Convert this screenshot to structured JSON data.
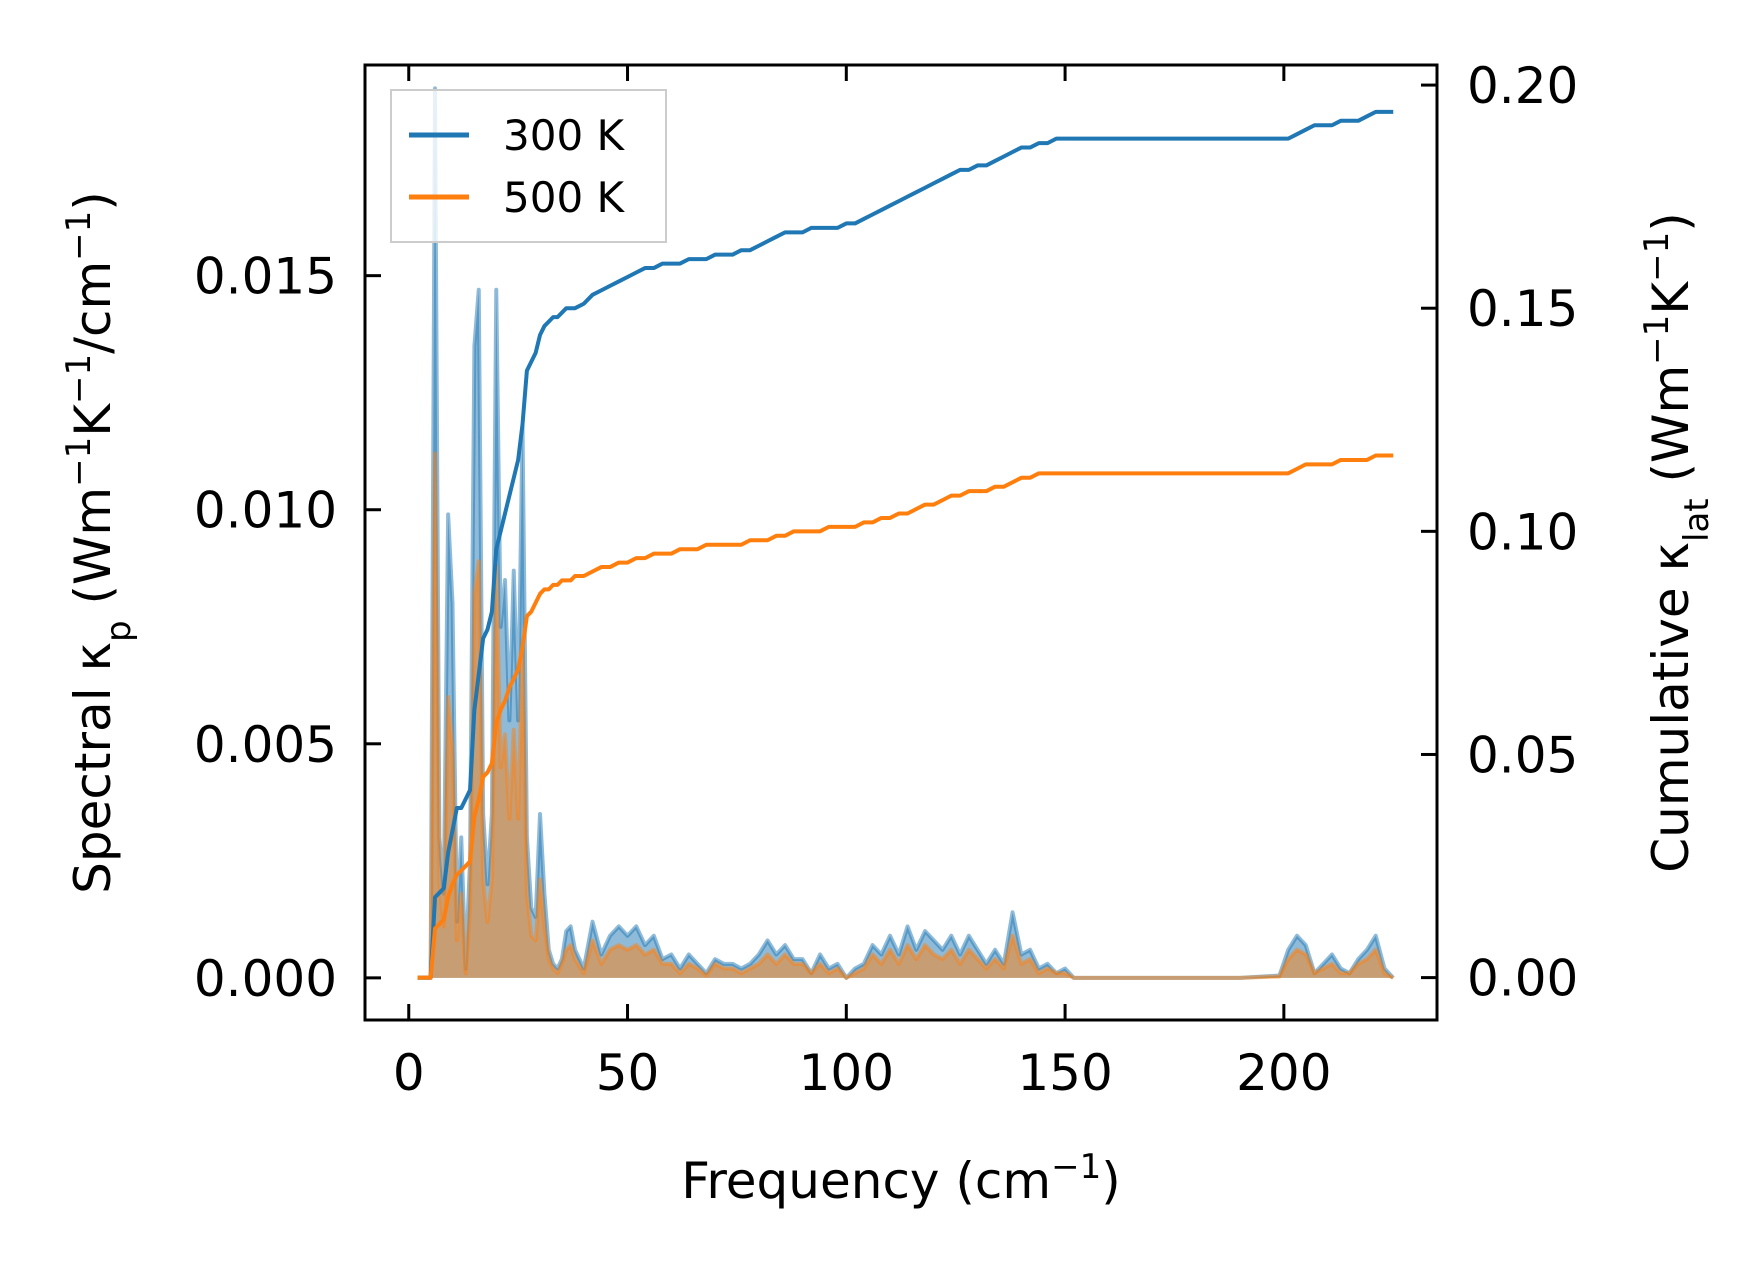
{
  "chart_data": {
    "type": "line",
    "title": "",
    "xlabel": {
      "base": "Frequency (cm",
      "sup": "−1",
      "tail": ")"
    },
    "ylabel_left": {
      "parts": [
        {
          "t": "Spectral κ",
          "kind": "normal"
        },
        {
          "t": "p",
          "kind": "sub"
        },
        {
          "t": " (Wm",
          "kind": "normal"
        },
        {
          "t": "−1",
          "kind": "sup"
        },
        {
          "t": "K",
          "kind": "normal"
        },
        {
          "t": "−1",
          "kind": "sup"
        },
        {
          "t": "/cm",
          "kind": "normal"
        },
        {
          "t": "−1",
          "kind": "sup"
        },
        {
          "t": ")",
          "kind": "normal"
        }
      ]
    },
    "ylabel_right": {
      "parts": [
        {
          "t": "Cumulative κ",
          "kind": "normal"
        },
        {
          "t": "lat",
          "kind": "sub"
        },
        {
          "t": " (Wm",
          "kind": "normal"
        },
        {
          "t": "−1",
          "kind": "sup"
        },
        {
          "t": "K",
          "kind": "normal"
        },
        {
          "t": "−1",
          "kind": "sup"
        },
        {
          "t": ")",
          "kind": "normal"
        }
      ]
    },
    "xlim": [
      -10,
      235
    ],
    "ylim_left": [
      -0.0009,
      0.0195
    ],
    "ylim_right": [
      -0.0095,
      0.2045
    ],
    "xticks": [
      0,
      50,
      100,
      150,
      200
    ],
    "xtick_labels": [
      "0",
      "50",
      "100",
      "150",
      "200"
    ],
    "yticks_left": [
      0.0,
      0.005,
      0.01,
      0.015
    ],
    "ytick_labels_left": [
      "0.000",
      "0.005",
      "0.010",
      "0.015"
    ],
    "yticks_right": [
      0.0,
      0.05,
      0.1,
      0.15,
      0.2
    ],
    "ytick_labels_right": [
      "0.00",
      "0.05",
      "0.10",
      "0.15",
      "0.20"
    ],
    "legend_position": "top-left",
    "series": [
      {
        "name": "300 K",
        "color": "#1f77b4",
        "spectral_x": [
          2,
          5,
          6,
          7,
          8,
          9,
          10,
          11,
          12,
          13,
          14,
          15,
          16,
          17,
          18,
          19,
          20,
          21,
          22,
          23,
          24,
          25,
          26,
          27,
          28,
          29,
          30,
          31,
          32,
          33,
          34,
          35,
          36,
          37,
          38,
          40,
          42,
          44,
          46,
          48,
          50,
          52,
          54,
          56,
          58,
          60,
          62,
          64,
          66,
          68,
          70,
          72,
          74,
          76,
          78,
          80,
          82,
          84,
          86,
          88,
          90,
          92,
          94,
          96,
          98,
          100,
          102,
          104,
          106,
          108,
          110,
          112,
          114,
          116,
          118,
          120,
          122,
          124,
          126,
          128,
          130,
          132,
          134,
          136,
          138,
          140,
          142,
          144,
          146,
          148,
          150,
          152,
          155,
          160,
          170,
          180,
          190,
          199,
          201,
          203,
          205,
          207,
          209,
          211,
          213,
          215,
          217,
          219,
          221,
          223,
          225
        ],
        "spectral_y": [
          0,
          0,
          0.019,
          0.003,
          0.0018,
          0.0099,
          0.008,
          0.0012,
          0.003,
          0.0002,
          0.0025,
          0.0135,
          0.0147,
          0.0035,
          0.002,
          0.0035,
          0.0147,
          0.0075,
          0.0085,
          0.0055,
          0.0087,
          0.0055,
          0.0118,
          0.003,
          0.0015,
          0.0013,
          0.0035,
          0.0018,
          0.0006,
          0.0003,
          0.0002,
          0.0004,
          0.001,
          0.0011,
          0.0006,
          0.0002,
          0.0012,
          0.0005,
          0.0009,
          0.0011,
          0.0009,
          0.0011,
          0.0007,
          0.0009,
          0.0004,
          0.0005,
          0.0002,
          0.0005,
          0.0003,
          0.0001,
          0.0004,
          0.0003,
          0.0003,
          0.0002,
          0.0003,
          0.0005,
          0.0008,
          0.0005,
          0.0007,
          0.0004,
          0.0004,
          0.0001,
          0.0005,
          0.0002,
          0.0003,
          0.0,
          0.0002,
          0.0003,
          0.0007,
          0.0005,
          0.0009,
          0.0005,
          0.0011,
          0.0006,
          0.001,
          0.0008,
          0.0006,
          0.0009,
          0.0005,
          0.0009,
          0.0006,
          0.0003,
          0.0006,
          0.0003,
          0.0014,
          0.0005,
          0.0006,
          0.0002,
          0.0003,
          0.0001,
          0.0002,
          0.0,
          0,
          0,
          0,
          0,
          0,
          5e-05,
          0.0006,
          0.0009,
          0.0007,
          0.0001,
          0.0003,
          0.0005,
          0.0002,
          0.0001,
          0.0004,
          0.0006,
          0.0009,
          0.0002,
          0
        ],
        "cumulative_x": [
          2,
          5,
          6,
          7,
          8,
          9,
          10,
          11,
          12,
          13,
          14,
          15,
          16,
          17,
          18,
          19,
          20,
          21,
          22,
          23,
          24,
          25,
          26,
          27,
          28,
          29,
          30,
          31,
          32,
          33,
          34,
          35,
          36,
          37,
          38,
          40,
          42,
          44,
          46,
          48,
          50,
          52,
          54,
          56,
          58,
          60,
          62,
          64,
          66,
          68,
          70,
          72,
          74,
          76,
          78,
          80,
          82,
          84,
          86,
          88,
          90,
          92,
          94,
          96,
          98,
          100,
          102,
          104,
          106,
          108,
          110,
          112,
          114,
          116,
          118,
          120,
          122,
          124,
          126,
          128,
          130,
          132,
          134,
          136,
          138,
          140,
          142,
          144,
          146,
          148,
          150,
          152,
          155,
          160,
          170,
          180,
          190,
          199,
          201,
          203,
          205,
          207,
          209,
          211,
          213,
          215,
          217,
          219,
          221,
          223,
          225
        ],
        "cumulative_y": [
          0,
          0,
          0.018,
          0.019,
          0.02,
          0.028,
          0.033,
          0.038,
          0.038,
          0.04,
          0.042,
          0.06,
          0.068,
          0.076,
          0.078,
          0.082,
          0.096,
          0.1,
          0.104,
          0.108,
          0.112,
          0.116,
          0.124,
          0.136,
          0.138,
          0.14,
          0.144,
          0.146,
          0.147,
          0.148,
          0.148,
          0.149,
          0.15,
          0.15,
          0.15,
          0.151,
          0.153,
          0.154,
          0.155,
          0.156,
          0.157,
          0.158,
          0.159,
          0.159,
          0.16,
          0.16,
          0.16,
          0.161,
          0.161,
          0.161,
          0.162,
          0.162,
          0.162,
          0.163,
          0.163,
          0.164,
          0.165,
          0.166,
          0.167,
          0.167,
          0.167,
          0.168,
          0.168,
          0.168,
          0.168,
          0.169,
          0.169,
          0.17,
          0.171,
          0.172,
          0.173,
          0.174,
          0.175,
          0.176,
          0.177,
          0.178,
          0.179,
          0.18,
          0.181,
          0.181,
          0.182,
          0.182,
          0.183,
          0.184,
          0.185,
          0.186,
          0.186,
          0.187,
          0.187,
          0.188,
          0.188,
          0.188,
          0.188,
          0.188,
          0.188,
          0.188,
          0.188,
          0.188,
          0.188,
          0.189,
          0.19,
          0.191,
          0.191,
          0.191,
          0.192,
          0.192,
          0.192,
          0.193,
          0.194,
          0.194,
          0.194
        ]
      },
      {
        "name": "500 K",
        "color": "#ff7f0e",
        "spectral_x": [
          2,
          5,
          6,
          7,
          8,
          9,
          10,
          11,
          12,
          13,
          14,
          15,
          16,
          17,
          18,
          19,
          20,
          21,
          22,
          23,
          24,
          25,
          26,
          27,
          28,
          29,
          30,
          31,
          32,
          33,
          34,
          35,
          36,
          37,
          38,
          40,
          42,
          44,
          46,
          48,
          50,
          52,
          54,
          56,
          58,
          60,
          62,
          64,
          66,
          68,
          70,
          72,
          74,
          76,
          78,
          80,
          82,
          84,
          86,
          88,
          90,
          92,
          94,
          96,
          98,
          100,
          102,
          104,
          106,
          108,
          110,
          112,
          114,
          116,
          118,
          120,
          122,
          124,
          126,
          128,
          130,
          132,
          134,
          136,
          138,
          140,
          142,
          144,
          146,
          148,
          150,
          152,
          155,
          160,
          170,
          180,
          190,
          199,
          201,
          203,
          205,
          207,
          209,
          211,
          213,
          215,
          217,
          219,
          221,
          223,
          225
        ],
        "spectral_y": [
          0,
          0,
          0.0112,
          0.002,
          0.0011,
          0.006,
          0.0049,
          0.0008,
          0.0018,
          0.0001,
          0.0015,
          0.0082,
          0.0089,
          0.0021,
          0.0012,
          0.0021,
          0.0088,
          0.0045,
          0.0052,
          0.0034,
          0.0053,
          0.0034,
          0.0071,
          0.0018,
          0.0009,
          0.0008,
          0.0021,
          0.0011,
          0.0004,
          0.0002,
          0.0001,
          0.0003,
          0.0006,
          0.0007,
          0.0004,
          0.0001,
          0.0008,
          0.0003,
          0.0006,
          0.0007,
          0.0006,
          0.0007,
          0.0005,
          0.0006,
          0.0003,
          0.0003,
          0.0001,
          0.0003,
          0.0002,
          5e-05,
          0.0003,
          0.0002,
          0.0002,
          0.0001,
          0.0002,
          0.0003,
          0.0005,
          0.0003,
          0.0005,
          0.0003,
          0.0003,
          0.0001,
          0.0003,
          0.0001,
          0.0002,
          0.0,
          0.0001,
          0.0002,
          0.0005,
          0.0003,
          0.0006,
          0.0003,
          0.0007,
          0.0004,
          0.0007,
          0.0005,
          0.0004,
          0.0006,
          0.0003,
          0.0006,
          0.0004,
          0.0002,
          0.0004,
          0.0002,
          0.0009,
          0.0003,
          0.0004,
          0.0001,
          0.0002,
          0.0001,
          0.0001,
          0.0,
          0,
          0,
          0,
          0,
          0,
          3e-05,
          0.0004,
          0.0006,
          0.0005,
          0.0001,
          0.0002,
          0.0003,
          0.0001,
          0.0001,
          0.0003,
          0.0004,
          0.0006,
          0.0001,
          0
        ],
        "cumulative_x": [
          2,
          5,
          6,
          7,
          8,
          9,
          10,
          11,
          12,
          13,
          14,
          15,
          16,
          17,
          18,
          19,
          20,
          21,
          22,
          23,
          24,
          25,
          26,
          27,
          28,
          29,
          30,
          31,
          32,
          33,
          34,
          35,
          36,
          37,
          38,
          40,
          42,
          44,
          46,
          48,
          50,
          52,
          54,
          56,
          58,
          60,
          62,
          64,
          66,
          68,
          70,
          72,
          74,
          76,
          78,
          80,
          82,
          84,
          86,
          88,
          90,
          92,
          94,
          96,
          98,
          100,
          102,
          104,
          106,
          108,
          110,
          112,
          114,
          116,
          118,
          120,
          122,
          124,
          126,
          128,
          130,
          132,
          134,
          136,
          138,
          140,
          142,
          144,
          146,
          148,
          150,
          152,
          155,
          160,
          170,
          180,
          190,
          199,
          201,
          203,
          205,
          207,
          209,
          211,
          213,
          215,
          217,
          219,
          221,
          223,
          225
        ],
        "cumulative_y": [
          0,
          0,
          0.011,
          0.012,
          0.013,
          0.018,
          0.021,
          0.023,
          0.024,
          0.025,
          0.026,
          0.036,
          0.04,
          0.045,
          0.046,
          0.048,
          0.057,
          0.06,
          0.062,
          0.065,
          0.067,
          0.069,
          0.074,
          0.081,
          0.082,
          0.084,
          0.086,
          0.087,
          0.087,
          0.088,
          0.088,
          0.089,
          0.089,
          0.089,
          0.09,
          0.09,
          0.091,
          0.092,
          0.092,
          0.093,
          0.093,
          0.094,
          0.094,
          0.095,
          0.095,
          0.095,
          0.096,
          0.096,
          0.096,
          0.097,
          0.097,
          0.097,
          0.097,
          0.097,
          0.098,
          0.098,
          0.098,
          0.099,
          0.099,
          0.1,
          0.1,
          0.1,
          0.1,
          0.101,
          0.101,
          0.101,
          0.101,
          0.102,
          0.102,
          0.103,
          0.103,
          0.104,
          0.104,
          0.105,
          0.106,
          0.106,
          0.107,
          0.108,
          0.108,
          0.109,
          0.109,
          0.109,
          0.11,
          0.11,
          0.111,
          0.112,
          0.112,
          0.113,
          0.113,
          0.113,
          0.113,
          0.113,
          0.113,
          0.113,
          0.113,
          0.113,
          0.113,
          0.113,
          0.113,
          0.114,
          0.115,
          0.115,
          0.115,
          0.115,
          0.116,
          0.116,
          0.116,
          0.116,
          0.117,
          0.117,
          0.117
        ]
      }
    ]
  }
}
